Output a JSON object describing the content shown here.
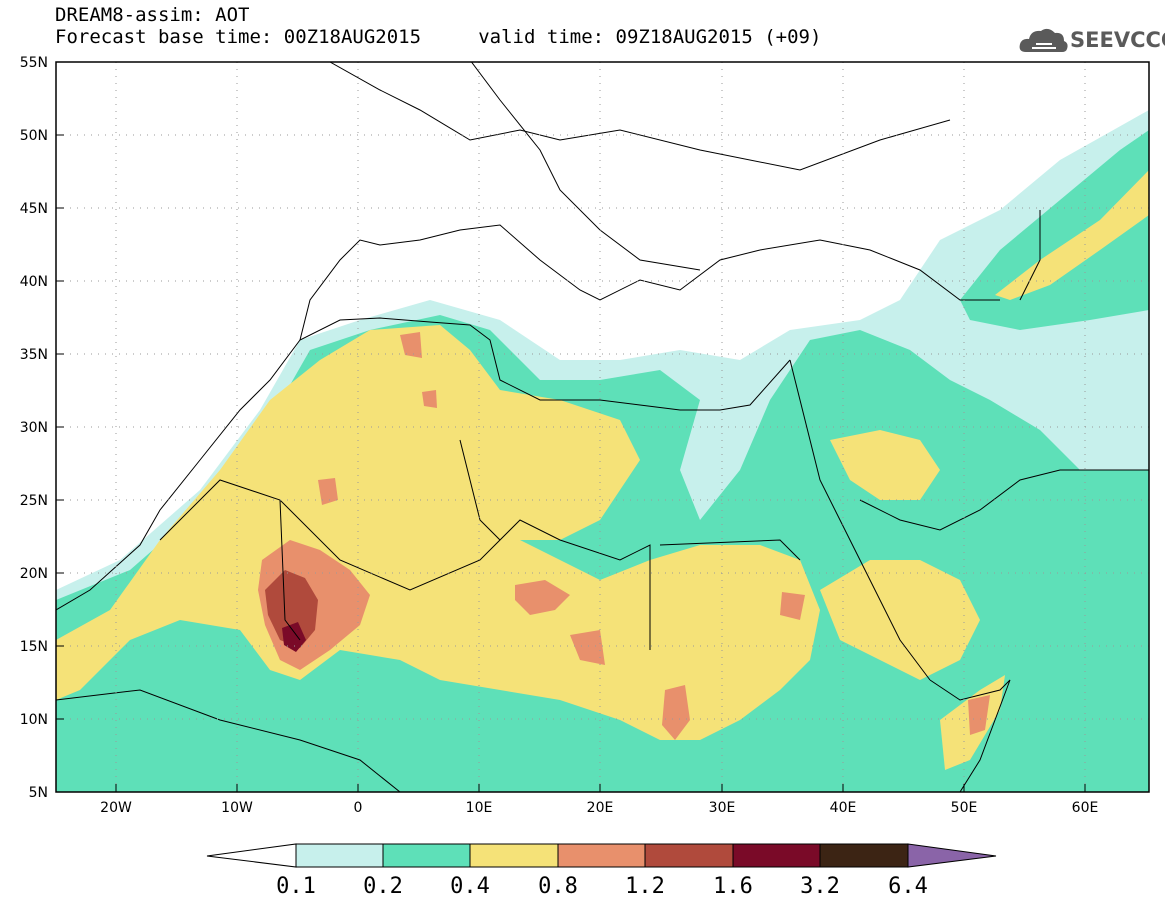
{
  "header": {
    "title": "DREAM8-assim: AOT",
    "subtitle": "Forecast base time: 00Z18AUG2015     valid time: 09Z18AUG2015 (+09)"
  },
  "logo": {
    "text": "SEEVCCC",
    "icon": "cloud-icon"
  },
  "map": {
    "lat_labels": [
      "55N",
      "50N",
      "45N",
      "40N",
      "35N",
      "30N",
      "25N",
      "20N",
      "15N",
      "10N",
      "5N"
    ],
    "lon_labels": [
      "20W",
      "10W",
      "0",
      "10E",
      "20E",
      "30E",
      "40E",
      "50E",
      "60E"
    ],
    "lat_range": [
      5,
      55
    ],
    "lon_range": [
      -25,
      65
    ],
    "grid": "dotted"
  },
  "colorbar": {
    "labels": [
      "0.1",
      "0.2",
      "0.4",
      "0.8",
      "1.2",
      "1.6",
      "3.2",
      "6.4"
    ],
    "colors": [
      "#ffffff",
      "#c7f0ec",
      "#5ee0b8",
      "#f5e278",
      "#e8906c",
      "#b04a3c",
      "#7a0a28",
      "#3c2414",
      "#8a64a8"
    ]
  }
}
